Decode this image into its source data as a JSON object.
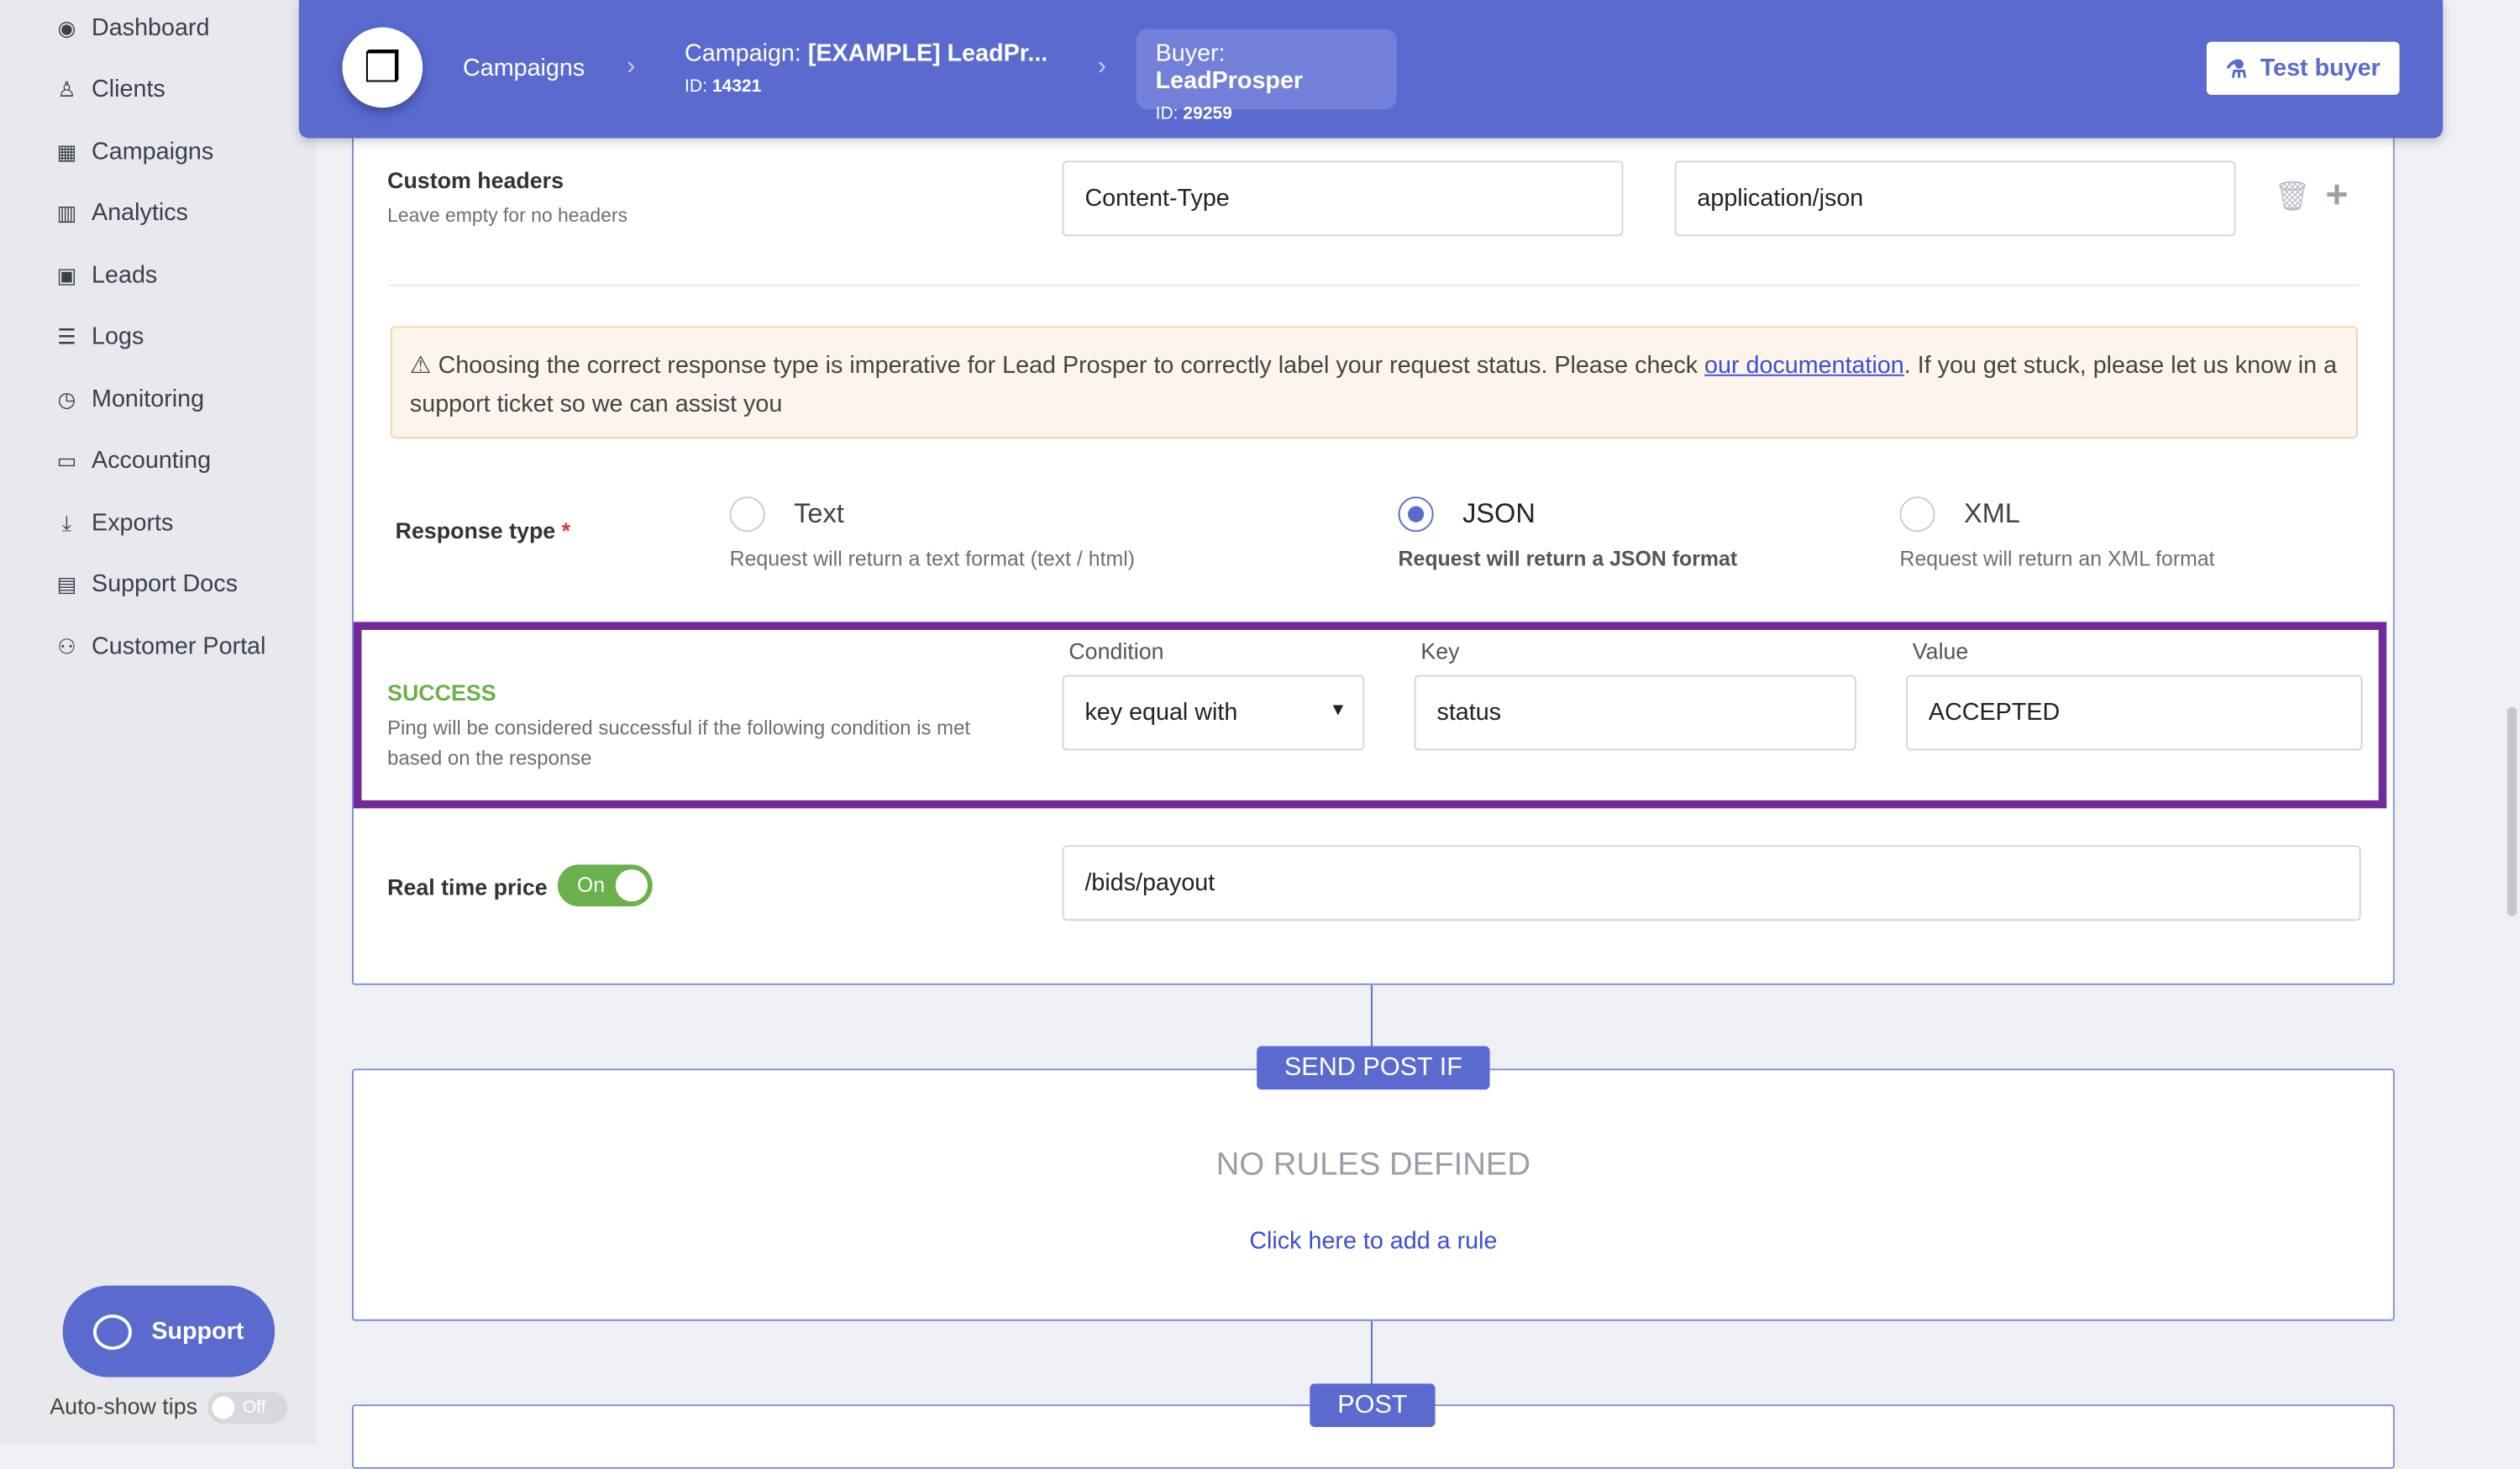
{
  "sidebar": {
    "items": [
      {
        "label": "Dashboard",
        "icon": "dashboard-icon"
      },
      {
        "label": "Clients",
        "icon": "user-icon"
      },
      {
        "label": "Campaigns",
        "icon": "cubes-icon"
      },
      {
        "label": "Analytics",
        "icon": "bar-chart-icon"
      },
      {
        "label": "Leads",
        "icon": "id-card-icon"
      },
      {
        "label": "Logs",
        "icon": "list-icon"
      },
      {
        "label": "Monitoring",
        "icon": "clock-icon"
      },
      {
        "label": "Accounting",
        "icon": "money-icon"
      },
      {
        "label": "Exports",
        "icon": "download-icon"
      },
      {
        "label": "Support Docs",
        "icon": "book-icon"
      },
      {
        "label": "Customer Portal",
        "icon": "users-icon"
      }
    ],
    "support_label": "Support",
    "autoshow_label": "Auto-show tips",
    "autoshow_state": "Off"
  },
  "header": {
    "crumb_campaigns": "Campaigns",
    "campaign_prefix": "Campaign: ",
    "campaign_name": "[EXAMPLE] LeadPr...",
    "campaign_id_prefix": "ID: ",
    "campaign_id": "14321",
    "buyer_prefix": "Buyer: ",
    "buyer_name": "LeadProsper",
    "buyer_id_prefix": "ID: ",
    "buyer_id": "29259",
    "test_buyer": "Test buyer"
  },
  "colors": {
    "brand": "#5a6acf",
    "success": "#6ab04c",
    "highlight": "#722a96"
  },
  "form": {
    "custom_headers": {
      "label": "Custom headers",
      "hint": "Leave empty for no headers",
      "key": "Content-Type",
      "value": "application/json"
    },
    "alert": {
      "text_before": "Choosing the correct response type is imperative for Lead Prosper to correctly label your request status. Please check ",
      "link": "our documentation",
      "text_after": ". If you get stuck, please let us know in a support ticket so we can assist you"
    },
    "response_type": {
      "label": "Response type",
      "required": "*",
      "options": [
        {
          "label": "Text",
          "desc": "Request will return a text format (text / html)",
          "selected": false
        },
        {
          "label": "JSON",
          "desc": "Request will return a JSON format",
          "selected": true
        },
        {
          "label": "XML",
          "desc": "Request will return an XML format",
          "selected": false
        }
      ]
    },
    "success": {
      "title": "SUCCESS",
      "desc": "Ping will be considered successful if the following condition is met based on the response",
      "condition_label": "Condition",
      "condition": "key equal with",
      "key_label": "Key",
      "key": "status",
      "value_label": "Value",
      "value": "ACCEPTED"
    },
    "realtime": {
      "label": "Real time price",
      "toggle": "On",
      "path": "/bids/payout"
    }
  },
  "send_post": {
    "tag": "SEND POST IF",
    "empty": "NO RULES DEFINED",
    "add_rule": "Click here to add a rule"
  },
  "post": {
    "tag": "POST"
  }
}
